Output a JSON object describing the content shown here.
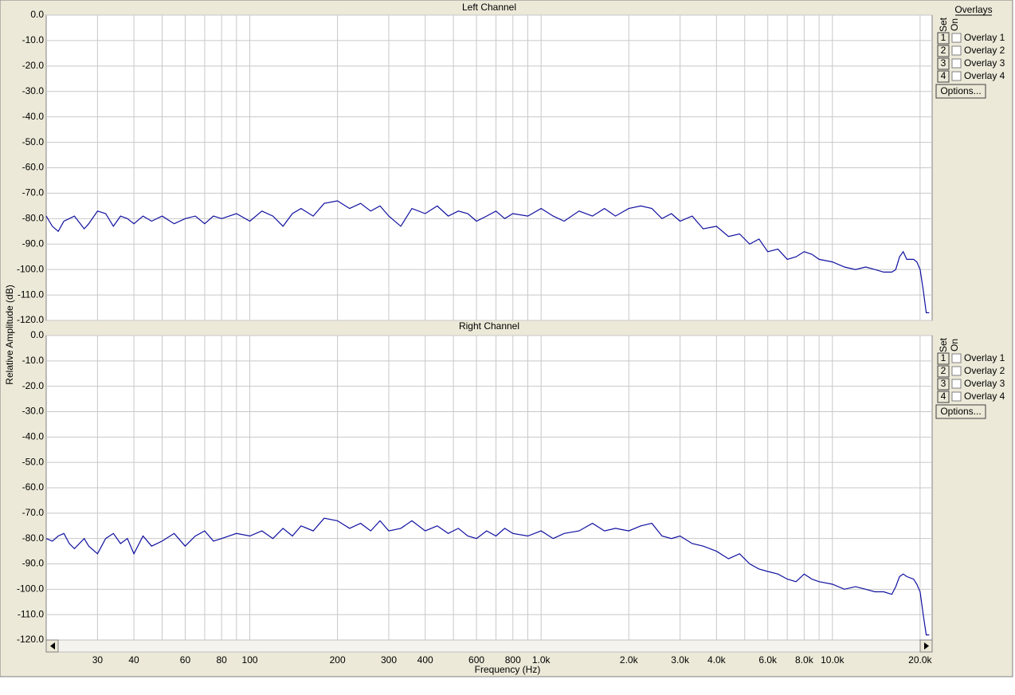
{
  "chart_data": [
    {
      "type": "line",
      "title": "Left Channel",
      "ylabel": "Relative Amplitude (dB)",
      "color": "#1010a0",
      "xscale": "log",
      "grid": true,
      "x": [
        20,
        21,
        22,
        23,
        24,
        25,
        27,
        28,
        30,
        32,
        34,
        36,
        38,
        40,
        43,
        46,
        50,
        55,
        60,
        65,
        70,
        75,
        80,
        90,
        100,
        110,
        120,
        130,
        140,
        150,
        165,
        180,
        200,
        220,
        240,
        260,
        280,
        300,
        330,
        360,
        400,
        440,
        480,
        520,
        560,
        600,
        650,
        700,
        750,
        800,
        900,
        1000,
        1100,
        1200,
        1350,
        1500,
        1650,
        1800,
        2000,
        2200,
        2400,
        2600,
        2800,
        3000,
        3300,
        3600,
        4000,
        4400,
        4800,
        5200,
        5600,
        6000,
        6500,
        7000,
        7500,
        8000,
        8500,
        9000,
        10000,
        11000,
        12000,
        13000,
        14000,
        15000,
        16000,
        16500,
        17000,
        17500,
        18000,
        19000,
        19500,
        20000,
        20500,
        21000,
        21500
      ],
      "values": [
        -79,
        -83,
        -85,
        -81,
        -80,
        -79,
        -84,
        -82,
        -77,
        -78,
        -83,
        -79,
        -80,
        -82,
        -79,
        -81,
        -79,
        -82,
        -80,
        -79,
        -82,
        -79,
        -80,
        -78,
        -81,
        -77,
        -79,
        -83,
        -78,
        -76,
        -79,
        -74,
        -73,
        -76,
        -74,
        -77,
        -75,
        -79,
        -83,
        -76,
        -78,
        -75,
        -79,
        -77,
        -78,
        -81,
        -79,
        -77,
        -80,
        -78,
        -79,
        -76,
        -79,
        -81,
        -77,
        -79,
        -76,
        -79,
        -76,
        -75,
        -76,
        -80,
        -78,
        -81,
        -79,
        -84,
        -83,
        -87,
        -86,
        -90,
        -88,
        -93,
        -92,
        -96,
        -95,
        -93,
        -94,
        -96,
        -97,
        -99,
        -100,
        -99,
        -100,
        -101,
        -101,
        -100,
        -95,
        -93,
        -96,
        -96,
        -97,
        -100,
        -108,
        -117,
        -117
      ],
      "ylim": [
        -120,
        0
      ],
      "yticks": [
        {
          "value": 0,
          "label": "0.0"
        },
        {
          "value": -10,
          "label": "-10.0"
        },
        {
          "value": -20,
          "label": "-20.0"
        },
        {
          "value": -30,
          "label": "-30.0"
        },
        {
          "value": -40,
          "label": "-40.0"
        },
        {
          "value": -50,
          "label": "-50.0"
        },
        {
          "value": -60,
          "label": "-60.0"
        },
        {
          "value": -70,
          "label": "-70.0"
        },
        {
          "value": -80,
          "label": "-80.0"
        },
        {
          "value": -90,
          "label": "-90.0"
        },
        {
          "value": -100,
          "label": "-100.0"
        },
        {
          "value": -110,
          "label": "-110.0"
        },
        {
          "value": -120,
          "label": "-120.0"
        }
      ]
    },
    {
      "type": "line",
      "title": "Right Channel",
      "xlabel": "Frequency (Hz)",
      "color": "#1010a0",
      "xscale": "log",
      "grid": true,
      "x": [
        20,
        21,
        22,
        23,
        24,
        25,
        27,
        28,
        30,
        32,
        34,
        36,
        38,
        40,
        43,
        46,
        50,
        55,
        60,
        65,
        70,
        75,
        80,
        90,
        100,
        110,
        120,
        130,
        140,
        150,
        165,
        180,
        200,
        220,
        240,
        260,
        280,
        300,
        330,
        360,
        400,
        440,
        480,
        520,
        560,
        600,
        650,
        700,
        750,
        800,
        900,
        1000,
        1100,
        1200,
        1350,
        1500,
        1650,
        1800,
        2000,
        2200,
        2400,
        2600,
        2800,
        3000,
        3300,
        3600,
        4000,
        4400,
        4800,
        5200,
        5600,
        6000,
        6500,
        7000,
        7500,
        8000,
        8500,
        9000,
        10000,
        11000,
        12000,
        13000,
        14000,
        15000,
        16000,
        16500,
        17000,
        17500,
        18000,
        19000,
        19500,
        20000,
        20500,
        21000,
        21500
      ],
      "values": [
        -80,
        -81,
        -79,
        -78,
        -82,
        -84,
        -80,
        -83,
        -86,
        -80,
        -78,
        -82,
        -80,
        -86,
        -79,
        -83,
        -81,
        -78,
        -83,
        -79,
        -77,
        -81,
        -80,
        -78,
        -79,
        -77,
        -80,
        -76,
        -79,
        -75,
        -77,
        -72,
        -73,
        -76,
        -74,
        -77,
        -73,
        -77,
        -76,
        -73,
        -77,
        -75,
        -78,
        -76,
        -79,
        -80,
        -77,
        -79,
        -76,
        -78,
        -79,
        -77,
        -80,
        -78,
        -77,
        -74,
        -77,
        -76,
        -77,
        -75,
        -74,
        -79,
        -80,
        -79,
        -82,
        -83,
        -85,
        -88,
        -86,
        -90,
        -92,
        -93,
        -94,
        -96,
        -97,
        -94,
        -96,
        -97,
        -98,
        -100,
        -99,
        -100,
        -101,
        -101,
        -102,
        -99,
        -95,
        -94,
        -95,
        -96,
        -98,
        -101,
        -110,
        -118,
        -118
      ],
      "ylim": [
        -120,
        0
      ],
      "yticks": [
        {
          "value": 0,
          "label": "0.0"
        },
        {
          "value": -10,
          "label": "-10.0"
        },
        {
          "value": -20,
          "label": "-20.0"
        },
        {
          "value": -30,
          "label": "-30.0"
        },
        {
          "value": -40,
          "label": "-40.0"
        },
        {
          "value": -50,
          "label": "-50.0"
        },
        {
          "value": -60,
          "label": "-60.0"
        },
        {
          "value": -70,
          "label": "-70.0"
        },
        {
          "value": -80,
          "label": "-80.0"
        },
        {
          "value": -90,
          "label": "-90.0"
        },
        {
          "value": -100,
          "label": "-100.0"
        },
        {
          "value": -110,
          "label": "-110.0"
        },
        {
          "value": -120,
          "label": "-120.0"
        }
      ],
      "xlim": [
        20,
        22000
      ],
      "xticks": [
        30,
        40,
        60,
        80,
        100,
        200,
        300,
        400,
        600,
        800,
        {
          "value": 1000,
          "label": "1.0k"
        },
        {
          "value": 2000,
          "label": "2.0k"
        },
        {
          "value": 3000,
          "label": "3.0k"
        },
        {
          "value": 4000,
          "label": "4.0k"
        },
        {
          "value": 6000,
          "label": "6.0k"
        },
        {
          "value": 8000,
          "label": "8.0k"
        },
        {
          "value": 10000,
          "label": "10.0k"
        },
        {
          "value": 20000,
          "label": "20.0k"
        }
      ],
      "xgrid_minor": [
        50,
        70,
        90,
        500,
        700,
        900,
        5000,
        7000,
        9000
      ]
    }
  ],
  "overlay_panel": {
    "title": "Overlays",
    "set": "Set",
    "on": "On",
    "options": "Options...",
    "items": [
      {
        "num": "1",
        "label": "Overlay 1",
        "color": "#ff0000"
      },
      {
        "num": "2",
        "label": "Overlay 2",
        "color": "#ff00ff"
      },
      {
        "num": "3",
        "label": "Overlay 3",
        "color": "#0000ff"
      },
      {
        "num": "4",
        "label": "Overlay 4",
        "color": "#00e0e0"
      }
    ]
  }
}
